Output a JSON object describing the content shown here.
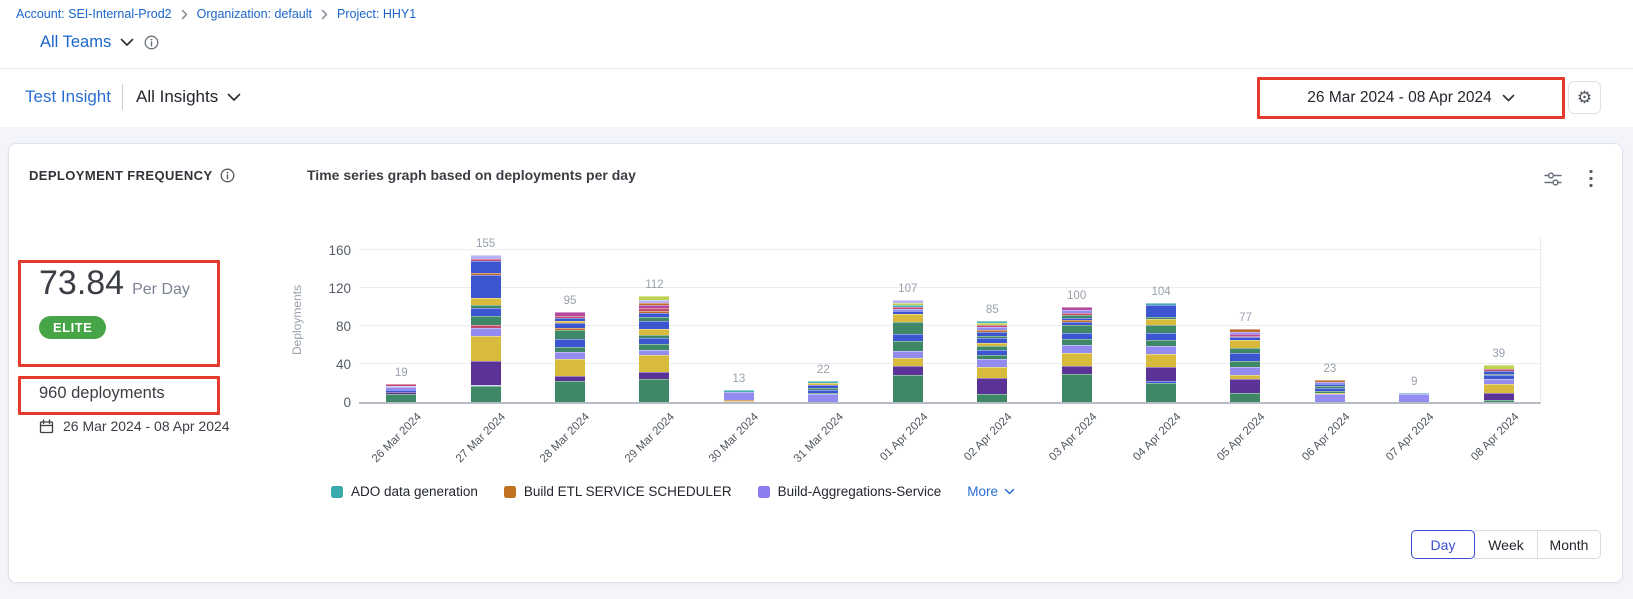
{
  "breadcrumb": {
    "account": "Account: SEI-Internal-Prod2",
    "org": "Organization: default",
    "project": "Project: HHY1"
  },
  "teams_selector": {
    "label": "All Teams"
  },
  "insight_header": {
    "insight_name": "Test Insight",
    "scope": "All Insights"
  },
  "date_range": {
    "label": "26 Mar 2024  -  08 Apr 2024"
  },
  "icons": {
    "gear": "⚙"
  },
  "widget": {
    "title": "DEPLOYMENT FREQUENCY",
    "metric": {
      "value": "73.84",
      "unit": "Per Day",
      "badge": "ELITE"
    },
    "total": "960 deployments",
    "period": "26 Mar 2024 - 08 Apr 2024",
    "granularity": {
      "options": [
        "Day",
        "Week",
        "Month"
      ],
      "selected": "Day"
    }
  },
  "colors": {
    "link_blue": "#2a6fd4",
    "annotation_red": "#e5392b",
    "badge_green": "#46a546",
    "toggle_selected_blue": "#3a4ed0"
  },
  "chart_data": {
    "type": "bar",
    "stacked": true,
    "title": "Time series graph based on deployments per day",
    "xlabel": "",
    "ylabel": "Deployments",
    "yticks": [
      0,
      40,
      80,
      120,
      160
    ],
    "ylim": [
      0,
      170
    ],
    "grid": true,
    "legend_position": "bottom",
    "categories": [
      "26 Mar 2024",
      "27 Mar 2024",
      "28 Mar 2024",
      "29 Mar 2024",
      "30 Mar 2024",
      "31 Mar 2024",
      "01 Apr 2024",
      "02 Apr 2024",
      "03 Apr 2024",
      "04 Apr 2024",
      "05 Apr 2024",
      "06 Apr 2024",
      "07 Apr 2024",
      "08 Apr 2024"
    ],
    "totals": [
      19,
      155,
      95,
      112,
      13,
      22,
      107,
      85,
      100,
      104,
      77,
      23,
      9,
      39
    ],
    "palette": {
      "green": "#3e8767",
      "purple": "#5b3295",
      "yellow": "#d8ba3c",
      "lavender": "#948bf0",
      "blue": "#3c55d0",
      "orange": "#bf6b2a",
      "pink": "#c24b6e",
      "magenta": "#b44a9e",
      "lilac": "#b9b2f6",
      "teal": "#45b0b4",
      "lime": "#bdd24f"
    },
    "bars": [
      [
        [
          "green",
          8
        ],
        [
          "purple",
          3
        ],
        [
          "blue",
          2
        ],
        [
          "lavender",
          3
        ],
        [
          "lilac",
          1
        ],
        [
          "pink",
          2
        ]
      ],
      [
        [
          "green",
          17
        ],
        [
          "lilac",
          1
        ],
        [
          "purple",
          25
        ],
        [
          "yellow",
          27
        ],
        [
          "lavender",
          8
        ],
        [
          "pink",
          3
        ],
        [
          "green",
          10
        ],
        [
          "blue",
          8
        ],
        [
          "green",
          3
        ],
        [
          "yellow",
          8
        ],
        [
          "blue",
          24
        ],
        [
          "orange",
          2
        ],
        [
          "blue",
          12
        ],
        [
          "pink",
          3
        ],
        [
          "lilac",
          4
        ]
      ],
      [
        [
          "green",
          22
        ],
        [
          "purple",
          5
        ],
        [
          "yellow",
          18
        ],
        [
          "lavender",
          8
        ],
        [
          "green",
          5
        ],
        [
          "blue",
          8
        ],
        [
          "green",
          10
        ],
        [
          "orange",
          2
        ],
        [
          "blue",
          5
        ],
        [
          "yellow",
          2
        ],
        [
          "blue",
          4
        ],
        [
          "pink",
          2
        ],
        [
          "magenta",
          4
        ]
      ],
      [
        [
          "green",
          24
        ],
        [
          "purple",
          8
        ],
        [
          "yellow",
          18
        ],
        [
          "lavender",
          5
        ],
        [
          "green",
          6
        ],
        [
          "blue",
          6
        ],
        [
          "green",
          4
        ],
        [
          "yellow",
          6
        ],
        [
          "blue",
          8
        ],
        [
          "green",
          5
        ],
        [
          "blue",
          4
        ],
        [
          "orange",
          2
        ],
        [
          "pink",
          3
        ],
        [
          "magenta",
          3
        ],
        [
          "orange",
          2
        ],
        [
          "lilac",
          4
        ],
        [
          "lime",
          4
        ]
      ],
      [
        [
          "yellow",
          1
        ],
        [
          "orange",
          1
        ],
        [
          "lavender",
          9
        ],
        [
          "teal",
          2
        ]
      ],
      [
        [
          "lavender",
          8
        ],
        [
          "green",
          2
        ],
        [
          "blue",
          3
        ],
        [
          "green",
          2
        ],
        [
          "blue",
          3
        ],
        [
          "yellow",
          2
        ],
        [
          "teal",
          2
        ]
      ],
      [
        [
          "green",
          28
        ],
        [
          "purple",
          10
        ],
        [
          "yellow",
          8
        ],
        [
          "lavender",
          8
        ],
        [
          "green",
          10
        ],
        [
          "blue",
          8
        ],
        [
          "green",
          12
        ],
        [
          "yellow",
          9
        ],
        [
          "blue",
          3
        ],
        [
          "lavender",
          2
        ],
        [
          "pink",
          2
        ],
        [
          "teal",
          2
        ],
        [
          "lime",
          2
        ],
        [
          "lilac",
          3
        ]
      ],
      [
        [
          "green",
          8
        ],
        [
          "purple",
          17
        ],
        [
          "yellow",
          12
        ],
        [
          "lavender",
          8
        ],
        [
          "green",
          5
        ],
        [
          "blue",
          5
        ],
        [
          "green",
          4
        ],
        [
          "yellow",
          3
        ],
        [
          "blue",
          5
        ],
        [
          "green",
          3
        ],
        [
          "blue",
          4
        ],
        [
          "orange",
          2
        ],
        [
          "lavender",
          3
        ],
        [
          "pink",
          2
        ],
        [
          "lime",
          2
        ],
        [
          "teal",
          2
        ]
      ],
      [
        [
          "green",
          30
        ],
        [
          "purple",
          8
        ],
        [
          "yellow",
          14
        ],
        [
          "lavender",
          8
        ],
        [
          "green",
          6
        ],
        [
          "blue",
          7
        ],
        [
          "green",
          8
        ],
        [
          "blue",
          3
        ],
        [
          "orange",
          2
        ],
        [
          "blue",
          3
        ],
        [
          "green",
          3
        ],
        [
          "pink",
          2
        ],
        [
          "lavender",
          3
        ],
        [
          "magenta",
          3
        ]
      ],
      [
        [
          "green",
          20
        ],
        [
          "blue",
          2
        ],
        [
          "purple",
          15
        ],
        [
          "yellow",
          14
        ],
        [
          "lavender",
          8
        ],
        [
          "green",
          6
        ],
        [
          "blue",
          8
        ],
        [
          "green",
          8
        ],
        [
          "yellow",
          6
        ],
        [
          "green",
          3
        ],
        [
          "blue",
          12
        ],
        [
          "teal",
          2
        ]
      ],
      [
        [
          "green",
          10
        ],
        [
          "purple",
          14
        ],
        [
          "yellow",
          4
        ],
        [
          "lavender",
          9
        ],
        [
          "green",
          6
        ],
        [
          "blue",
          9
        ],
        [
          "green",
          5
        ],
        [
          "yellow",
          8
        ],
        [
          "blue",
          3
        ],
        [
          "pink",
          2
        ],
        [
          "magenta",
          2
        ],
        [
          "lavender",
          2
        ],
        [
          "orange",
          3
        ]
      ],
      [
        [
          "lavender",
          8
        ],
        [
          "yellow",
          2
        ],
        [
          "green",
          2
        ],
        [
          "blue",
          3
        ],
        [
          "green",
          2
        ],
        [
          "blue",
          2
        ],
        [
          "lavender",
          2
        ],
        [
          "orange",
          2
        ]
      ],
      [
        [
          "lavender",
          8
        ],
        [
          "teal",
          1
        ]
      ],
      [
        [
          "green",
          2
        ],
        [
          "purple",
          8
        ],
        [
          "yellow",
          9
        ],
        [
          "lavender",
          5
        ],
        [
          "blue",
          4
        ],
        [
          "green",
          2
        ],
        [
          "blue",
          3
        ],
        [
          "pink",
          2
        ],
        [
          "lime",
          4
        ]
      ]
    ],
    "legend": [
      {
        "label": "ADO data generation",
        "color": "#3aabad"
      },
      {
        "label": "Build ETL SERVICE SCHEDULER",
        "color": "#c1701f"
      },
      {
        "label": "Build-Aggregations-Service",
        "color": "#8b7bf0"
      }
    ],
    "legend_more": "More"
  }
}
